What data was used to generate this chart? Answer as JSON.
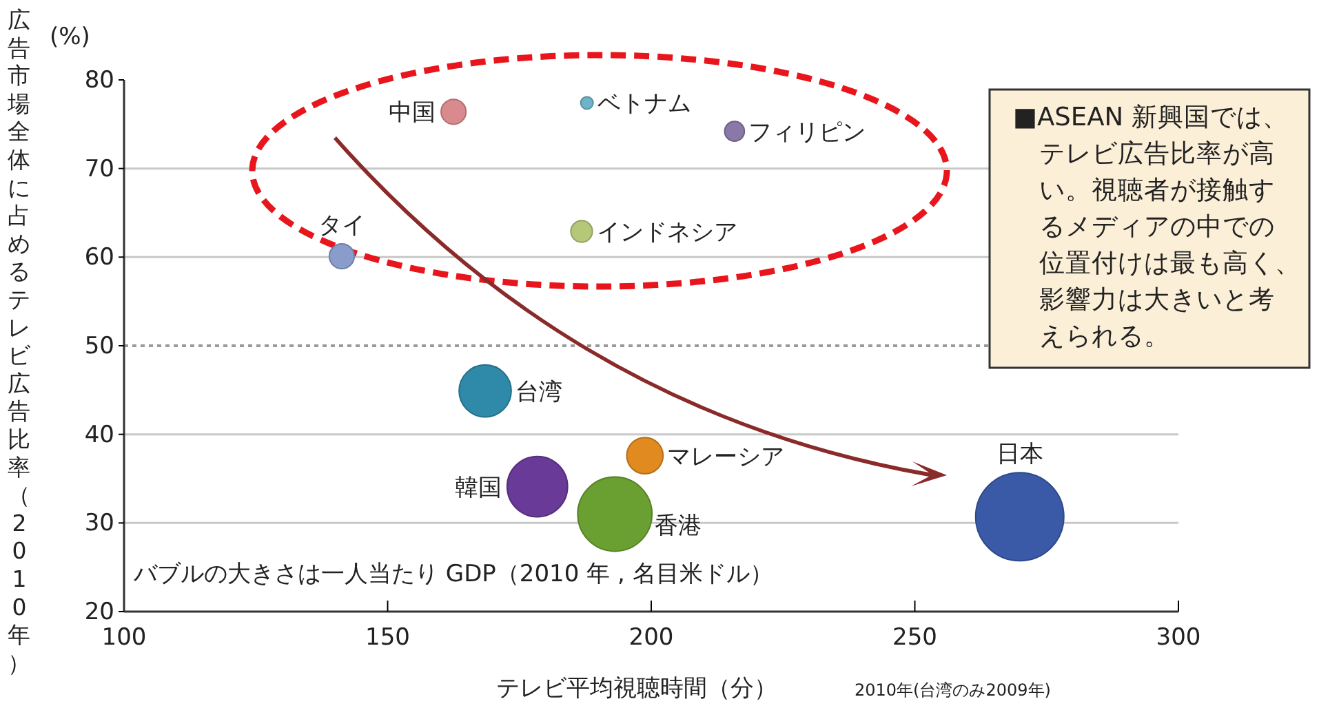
{
  "chart_data": {
    "type": "bubble",
    "ylabel": "広告市場全体に占めるテレビ広告比率（2010年）",
    "xlabel": "テレビ平均視聴時間（分）",
    "xlim": [
      100,
      300
    ],
    "xticks": [
      100,
      150,
      200,
      250,
      300
    ],
    "ylim": [
      20,
      80
    ],
    "yticks": [
      20,
      30,
      40,
      50,
      60,
      70,
      80
    ],
    "grid": "y",
    "ref_lines": [
      {
        "axis": "y",
        "value": 50,
        "color": "#9a9a9a",
        "line_style": "dotted"
      }
    ],
    "series": [
      {
        "name": "中国",
        "color": "#d88a8e",
        "x": [
          162.5
        ],
        "values": [
          76.4
        ],
        "sizes": [
          0.08
        ]
      },
      {
        "name": "ベトナム",
        "color": "#6fb3c8",
        "x": [
          187.8
        ],
        "values": [
          77.4
        ],
        "sizes": [
          0.02
        ]
      },
      {
        "name": "フィリピン",
        "color": "#8a78a8",
        "x": [
          215.8
        ],
        "values": [
          74.2
        ],
        "sizes": [
          0.05
        ]
      },
      {
        "name": "インドネシア",
        "color": "#b5c878",
        "x": [
          186.8
        ],
        "values": [
          62.9
        ],
        "sizes": [
          0.06
        ]
      },
      {
        "name": "タイ",
        "color": "#8a9ccc",
        "x": [
          141.3
        ],
        "values": [
          60.1
        ],
        "sizes": [
          0.08
        ]
      },
      {
        "name": "台湾",
        "color": "#2e8aa8",
        "x": [
          168.5
        ],
        "values": [
          44.9
        ],
        "sizes": [
          0.35
        ]
      },
      {
        "name": "マレーシア",
        "color": "#e08a20",
        "x": [
          198.8
        ],
        "values": [
          37.6
        ],
        "sizes": [
          0.17
        ]
      },
      {
        "name": "韓国",
        "color": "#6a3a98",
        "x": [
          178.4
        ],
        "values": [
          34.1
        ],
        "sizes": [
          0.47
        ]
      },
      {
        "name": "香港",
        "color": "#6aa032",
        "x": [
          193.1
        ],
        "values": [
          31.0
        ],
        "sizes": [
          0.71
        ]
      },
      {
        "name": "日本",
        "color": "#3a5aa8",
        "x": [
          269.9
        ],
        "values": [
          30.7
        ],
        "sizes": [
          1
        ]
      }
    ],
    "annotations": [
      "(%)",
      "■ASEAN 新興国では、テレビ広告比率が高い。視聴者が接触するメディアの中での位置付けは最も高く、影響力は大きいと考えられる。",
      "バブルの大きさは一人当たり GDP（2010 年 , 名目米ドル）",
      "2010年(台湾のみ2009年)"
    ]
  }
}
